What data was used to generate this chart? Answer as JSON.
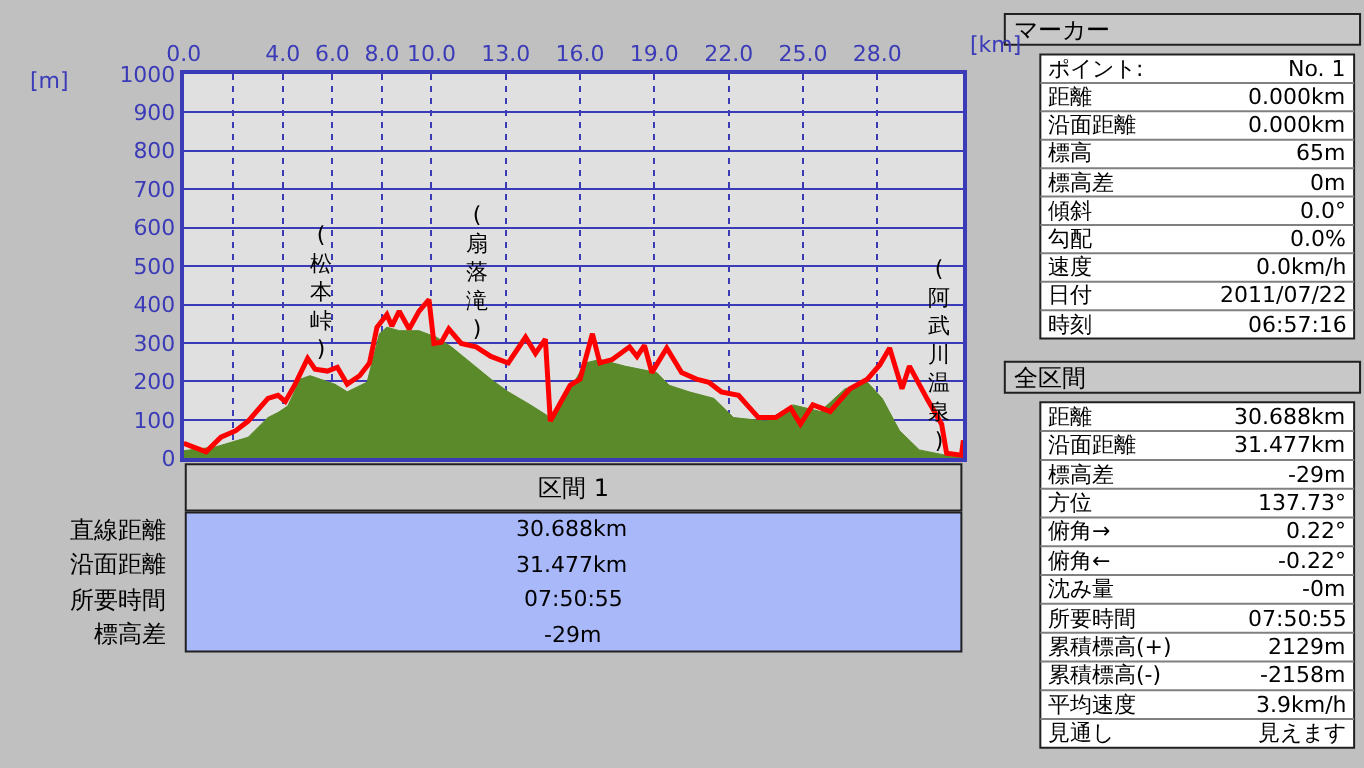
{
  "chart_data": [
    {
      "type": "line",
      "xlabel": "[km]",
      "ylabel": "[m]",
      "xlim": [
        0,
        31.477
      ],
      "ylim": [
        0,
        1000
      ],
      "xticks": [
        {
          "value": 0,
          "label": "0.0"
        },
        {
          "value": 2,
          "label": null
        },
        {
          "value": 4,
          "label": "4.0"
        },
        {
          "value": 6,
          "label": "6.0"
        },
        {
          "value": 8,
          "label": "8.0"
        },
        {
          "value": 10,
          "label": "10.0"
        },
        {
          "value": 13,
          "label": "13.0"
        },
        {
          "value": 16,
          "label": "16.0"
        },
        {
          "value": 19,
          "label": "19.0"
        },
        {
          "value": 22,
          "label": "22.0"
        },
        {
          "value": 25,
          "label": "25.0"
        },
        {
          "value": 28,
          "label": "28.0"
        }
      ],
      "yticks": [
        0,
        100,
        200,
        300,
        400,
        500,
        600,
        700,
        800,
        900,
        1000
      ],
      "grid": true,
      "series": [
        {
          "type": "area",
          "color": "#5a8a2a",
          "x": [
            0,
            1.3,
            2.6,
            3.4,
            3.8,
            4.2,
            4.7,
            5.1,
            6.1,
            6.6,
            7.4,
            7.9,
            8.2,
            8.7,
            9.5,
            10.2,
            10.8,
            11.6,
            12.4,
            13.1,
            14.0,
            14.8,
            15.4,
            16.2,
            16.8,
            17.8,
            19.1,
            19.6,
            20.4,
            21.4,
            22.2,
            23.5,
            24.6,
            25.7,
            26.7,
            27.6,
            28.2,
            28.9,
            29.7,
            31.0,
            31.477
          ],
          "values": [
            20,
            30,
            55,
            106,
            119,
            136,
            206,
            215,
            193,
            173,
            198,
            324,
            341,
            332,
            332,
            315,
            290,
            248,
            206,
            173,
            139,
            106,
            156,
            248,
            257,
            240,
            223,
            190,
            173,
            156,
            106,
            97,
            139,
            122,
            181,
            198,
            156,
            72,
            22,
            5,
            5
          ]
        },
        {
          "type": "line",
          "color": "#ff0000",
          "x": [
            0,
            0.9,
            1.5,
            2.1,
            2.6,
            3.4,
            3.8,
            4.1,
            4.5,
            5.0,
            5.3,
            5.8,
            6.2,
            6.6,
            7.1,
            7.5,
            7.8,
            8.2,
            8.4,
            8.7,
            9.1,
            9.5,
            9.9,
            10.1,
            10.4,
            10.7,
            11.2,
            11.8,
            12.4,
            13.1,
            13.8,
            14.2,
            14.6,
            14.8,
            15.6,
            16.0,
            16.5,
            16.8,
            17.3,
            18.0,
            18.3,
            18.6,
            18.9,
            19.5,
            20.1,
            20.7,
            21.2,
            21.7,
            22.4,
            23.2,
            23.9,
            24.5,
            24.9,
            25.4,
            26.1,
            26.9,
            27.6,
            28.1,
            28.5,
            28.8,
            29.0,
            29.3,
            30.0,
            30.6,
            30.8,
            31.4,
            31.477
          ],
          "values": [
            39,
            17,
            55,
            72,
            97,
            156,
            164,
            148,
            193,
            260,
            232,
            227,
            237,
            193,
            215,
            248,
            341,
            374,
            344,
            383,
            336,
            383,
            413,
            299,
            302,
            337,
            299,
            290,
            265,
            248,
            315,
            273,
            310,
            97,
            190,
            206,
            324,
            248,
            257,
            290,
            265,
            294,
            223,
            287,
            223,
            206,
            198,
            173,
            164,
            106,
            106,
            131,
            89,
            139,
            122,
            181,
            206,
            243,
            287,
            223,
            181,
            240,
            156,
            89,
            13,
            8,
            47
          ]
        }
      ],
      "annotations": [
        "(松本峠)",
        "(扇落滝)",
        "(阿武川温泉)"
      ]
    },
    {
      "type": "other",
      "title": "区間 1",
      "annotations": [
        "直線距離",
        "30.688km",
        "沿面距離",
        "31.477km",
        "所要時間",
        "07:50:55",
        "標高差",
        "-29m"
      ]
    },
    {
      "type": "other",
      "title": "マーカー",
      "annotations": [
        "ポイント:",
        "No. 1",
        "距離",
        "0.000km",
        "沿面距離",
        "0.000km",
        "標高",
        "65m",
        "標高差",
        "0m",
        "傾斜",
        "0.0°",
        "勾配",
        "0.0%",
        "速度",
        "0.0km/h",
        "日付",
        "2011/07/22",
        "時刻",
        "06:57:16"
      ]
    },
    {
      "type": "other",
      "title": "全区間",
      "annotations": [
        "距離",
        "30.688km",
        "沿面距離",
        "31.477km",
        "標高差",
        "-29m",
        "方位",
        "137.73°",
        "俯角→",
        "0.22°",
        "俯角←",
        "-0.22°",
        "沈み量",
        "-0m",
        "所要時間",
        "07:50:55",
        "累積標高(+)",
        "2129m",
        "累積標高(-)",
        "-2158m",
        "平均速度",
        "3.9km/h",
        "見通し",
        "見えます"
      ]
    }
  ]
}
